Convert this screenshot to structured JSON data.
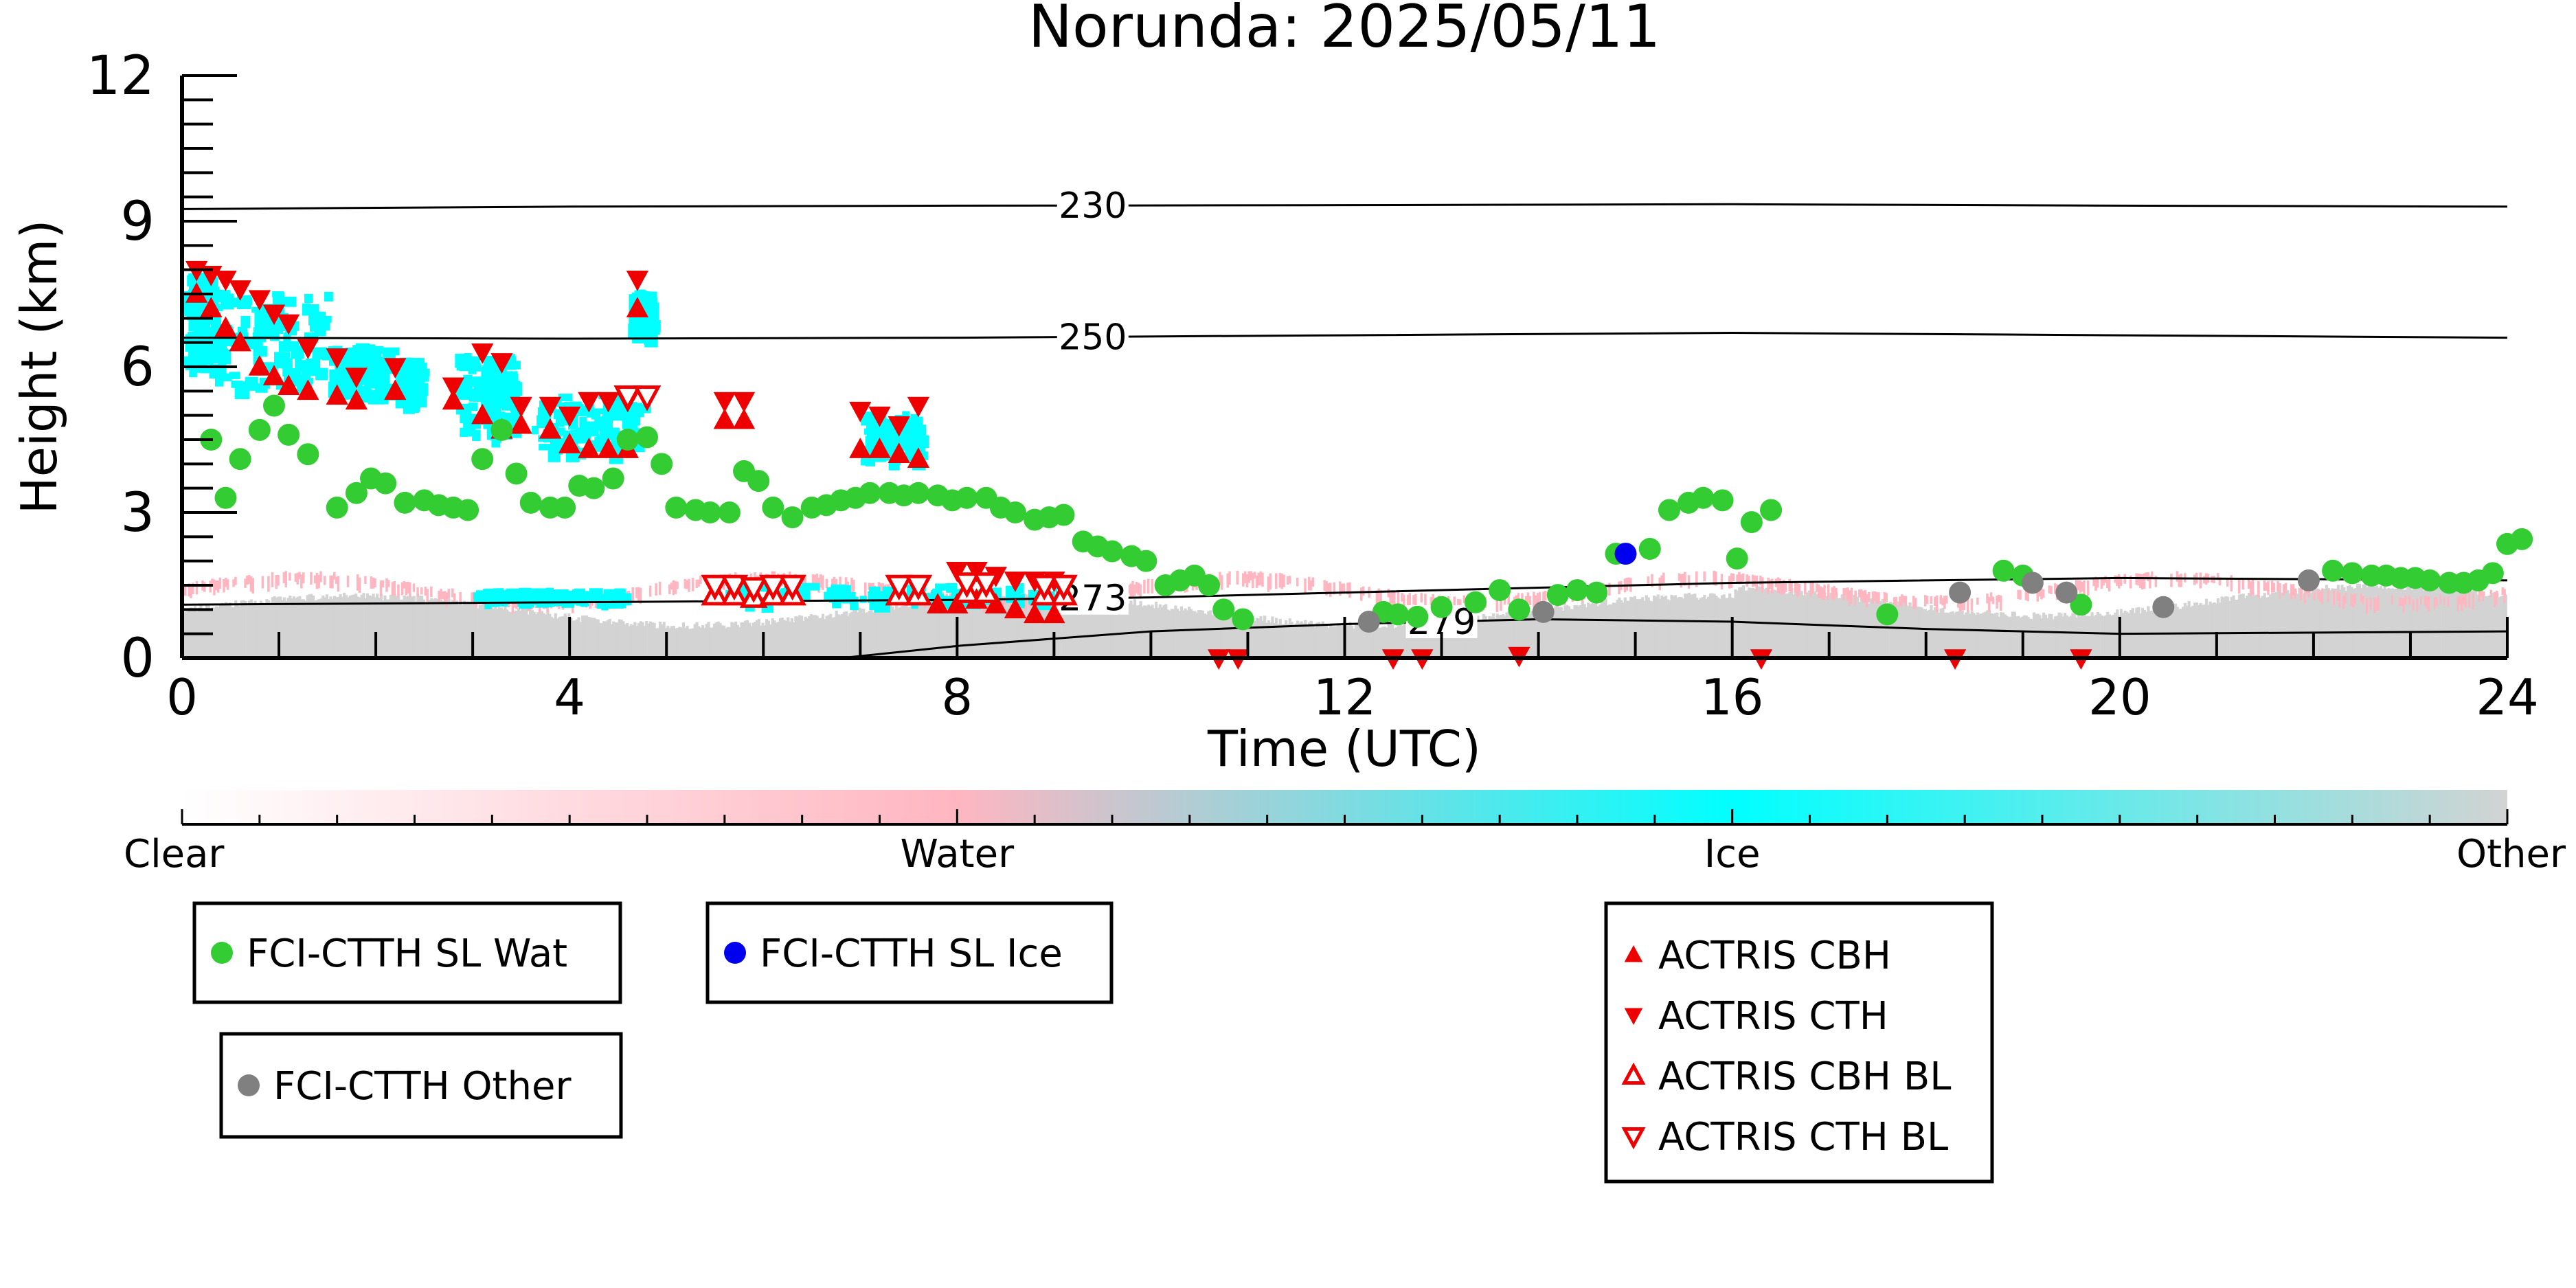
{
  "chart_data": {
    "type": "scatter",
    "title": "Norunda: 2025/05/11",
    "xlabel": "Time (UTC)",
    "ylabel": "Height (km)",
    "xlim": [
      0,
      24
    ],
    "ylim": [
      0,
      12
    ],
    "x_ticks": [
      0,
      4,
      8,
      12,
      16,
      20,
      24
    ],
    "y_ticks": [
      0,
      3,
      6,
      9,
      12
    ],
    "grid": false,
    "isotherms": [
      {
        "label": "230",
        "x": [
          0,
          4,
          8,
          12,
          16,
          20,
          24
        ],
        "y": [
          9.25,
          9.3,
          9.32,
          9.33,
          9.35,
          9.32,
          9.3
        ],
        "label_x": 9.4
      },
      {
        "label": "250",
        "x": [
          0,
          4,
          8,
          12,
          16,
          20,
          24
        ],
        "y": [
          6.6,
          6.58,
          6.6,
          6.65,
          6.7,
          6.65,
          6.6
        ],
        "label_x": 9.4
      },
      {
        "label": "273",
        "x": [
          0,
          4,
          8,
          10,
          12,
          16,
          20,
          24
        ],
        "y": [
          1.1,
          1.15,
          1.2,
          1.25,
          1.35,
          1.55,
          1.65,
          1.6
        ],
        "label_x": 9.4
      },
      {
        "label": "279",
        "x": [
          6.8,
          8,
          10,
          12,
          14,
          16,
          18,
          19,
          20,
          24
        ],
        "y": [
          0,
          0.25,
          0.55,
          0.7,
          0.8,
          0.75,
          0.6,
          0.55,
          0.5,
          0.55
        ],
        "label_x": 13.0
      }
    ],
    "colorbar": {
      "labels": [
        "Clear",
        "Water",
        "Ice",
        "Other"
      ],
      "colors": [
        "#ffffff",
        "#ffb6c1",
        "#00ffff",
        "#d3d3d3"
      ]
    },
    "series": [
      {
        "name": "FCI-CTTH SL Wat",
        "color": "#33cc33",
        "marker": "circle",
        "x": [
          0.3,
          0.45,
          0.6,
          0.8,
          0.95,
          1.1,
          1.3,
          1.6,
          1.8,
          1.95,
          2.1,
          2.3,
          2.5,
          2.65,
          2.8,
          2.95,
          3.1,
          3.3,
          3.45,
          3.6,
          3.8,
          3.95,
          4.1,
          4.25,
          4.45,
          4.6,
          4.8,
          4.95,
          5.1,
          5.3,
          5.45,
          5.65,
          5.8,
          5.95,
          6.1,
          6.3,
          6.5,
          6.65,
          6.8,
          6.95,
          7.1,
          7.3,
          7.45,
          7.6,
          7.8,
          7.95,
          8.1,
          8.3,
          8.45,
          8.6,
          8.8,
          8.95,
          9.1,
          9.3,
          9.45,
          9.6,
          9.8,
          9.95,
          10.15,
          10.3,
          10.45,
          10.6,
          10.75,
          10.95,
          12.4,
          12.55,
          12.75,
          13.0,
          13.35,
          13.6,
          13.8,
          14.2,
          14.4,
          14.6,
          14.8,
          15.15,
          15.35,
          15.55,
          15.7,
          15.9,
          16.05,
          16.2,
          16.4,
          17.6,
          18.8,
          19.0,
          19.6,
          22.2,
          22.4,
          22.6,
          22.75,
          22.9,
          23.05,
          23.2,
          23.4,
          23.55,
          23.7,
          23.85,
          24.0,
          24.15
        ],
        "y": [
          4.5,
          3.3,
          4.1,
          4.7,
          5.2,
          4.6,
          4.2,
          3.1,
          3.4,
          3.7,
          3.6,
          3.2,
          3.25,
          3.15,
          3.1,
          3.05,
          4.1,
          4.7,
          3.8,
          3.2,
          3.1,
          3.1,
          3.55,
          3.5,
          3.7,
          4.5,
          4.55,
          4.0,
          3.1,
          3.05,
          3.0,
          3.0,
          3.85,
          3.65,
          3.1,
          2.9,
          3.1,
          3.15,
          3.25,
          3.3,
          3.4,
          3.4,
          3.35,
          3.4,
          3.35,
          3.25,
          3.3,
          3.3,
          3.1,
          3.0,
          2.85,
          2.9,
          2.95,
          2.4,
          2.3,
          2.2,
          2.1,
          2.0,
          1.5,
          1.6,
          1.7,
          1.5,
          1.0,
          0.8,
          0.95,
          0.9,
          0.85,
          1.05,
          1.15,
          1.4,
          1.0,
          1.3,
          1.4,
          1.35,
          2.15,
          2.25,
          3.05,
          3.2,
          3.3,
          3.25,
          2.05,
          2.8,
          3.05,
          0.9,
          1.8,
          1.7,
          1.1,
          1.8,
          1.75,
          1.7,
          1.7,
          1.65,
          1.65,
          1.6,
          1.55,
          1.55,
          1.6,
          1.75,
          2.35,
          2.45
        ]
      },
      {
        "name": "FCI-CTTH SL Ice",
        "color": "#0000ee",
        "marker": "circle",
        "x": [
          14.9
        ],
        "y": [
          2.15
        ]
      },
      {
        "name": "FCI-CTTH Other",
        "color": "#808080",
        "marker": "circle",
        "x": [
          12.25,
          14.05,
          18.35,
          19.1,
          19.45,
          20.45,
          21.95
        ],
        "y": [
          0.75,
          0.95,
          1.35,
          1.55,
          1.35,
          1.05,
          1.6
        ]
      },
      {
        "name": "ACTRIS CBH",
        "color": "#ee0000",
        "marker": "triangle-up",
        "x": [
          0.15,
          0.3,
          0.45,
          0.6,
          0.8,
          0.95,
          1.1,
          1.3,
          1.6,
          1.8,
          2.2,
          2.8,
          3.1,
          3.3,
          3.5,
          3.8,
          4.0,
          4.2,
          4.4,
          4.6,
          4.7,
          5.6,
          5.8,
          7.0,
          7.2,
          7.4,
          7.6,
          7.8,
          8.0,
          8.2,
          8.4,
          8.6,
          8.8,
          9.0
        ],
        "y": [
          7.5,
          7.2,
          6.8,
          6.5,
          6.0,
          5.8,
          5.6,
          5.5,
          5.4,
          5.3,
          5.5,
          5.3,
          5.0,
          4.7,
          4.8,
          4.7,
          4.4,
          4.3,
          4.3,
          4.3,
          7.2,
          4.9,
          4.9,
          4.3,
          4.3,
          4.2,
          4.1,
          1.1,
          1.1,
          1.2,
          1.1,
          1.0,
          0.9,
          0.9
        ]
      },
      {
        "name": "ACTRIS CTH",
        "color": "#ee0000",
        "marker": "triangle-down",
        "x": [
          0.15,
          0.3,
          0.45,
          0.6,
          0.8,
          0.95,
          1.1,
          1.3,
          1.6,
          1.8,
          2.2,
          2.8,
          3.1,
          3.3,
          3.5,
          3.8,
          4.0,
          4.2,
          4.4,
          4.6,
          4.7,
          5.6,
          5.8,
          7.0,
          7.2,
          7.4,
          7.6,
          8.0,
          8.2,
          8.4,
          8.6,
          8.8,
          9.0,
          10.7,
          10.9,
          12.5,
          12.8,
          13.8,
          16.3,
          18.3,
          19.6
        ],
        "y": [
          8.0,
          7.9,
          7.8,
          7.6,
          7.4,
          7.1,
          6.9,
          6.4,
          6.2,
          5.8,
          6.0,
          5.6,
          6.3,
          6.1,
          5.2,
          5.2,
          5.0,
          5.3,
          5.3,
          5.3,
          7.8,
          5.3,
          5.3,
          5.1,
          5.0,
          4.8,
          5.2,
          1.8,
          1.8,
          1.7,
          1.6,
          1.6,
          1.6,
          0.0,
          0.0,
          0.0,
          0.0,
          0.05,
          0.0,
          0.0,
          0.0
        ]
      },
      {
        "name": "ACTRIS CBH BL",
        "color": "#ee0000",
        "marker": "triangle-up-open",
        "x": [
          5.5,
          5.7,
          5.9,
          6.1,
          6.3,
          7.4,
          7.6,
          8.1,
          8.3,
          8.9,
          9.1
        ],
        "y": [
          1.3,
          1.3,
          1.25,
          1.3,
          1.3,
          1.3,
          1.3,
          1.35,
          1.35,
          1.3,
          1.3
        ]
      },
      {
        "name": "ACTRIS CTH BL",
        "color": "#ee0000",
        "marker": "triangle-down-open",
        "x": [
          4.6,
          4.8,
          5.5,
          5.7,
          5.9,
          6.1,
          6.3,
          7.4,
          7.6,
          8.1,
          8.3,
          8.9,
          9.1
        ],
        "y": [
          5.4,
          5.4,
          1.5,
          1.5,
          1.45,
          1.5,
          1.5,
          1.5,
          1.5,
          1.55,
          1.55,
          1.5,
          1.5
        ]
      }
    ],
    "legend_placement": "below-plot"
  }
}
